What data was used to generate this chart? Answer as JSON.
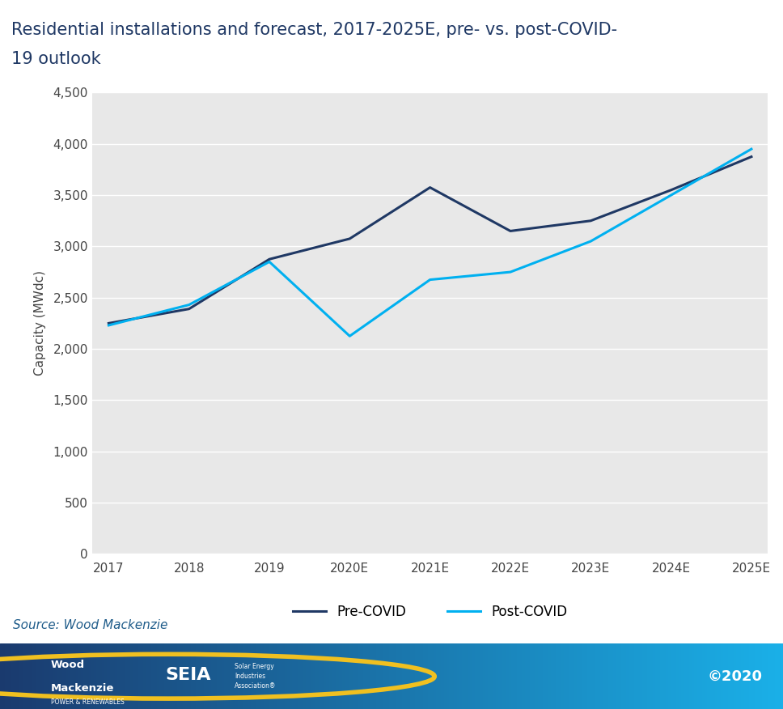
{
  "title_line1": "Residential installations and forecast, 2017-2025E, pre- vs. post-COVID-",
  "title_line2": "19 outlook",
  "ylabel": "Capacity (MWdc)",
  "source_text": "Source: Wood Mackenzie",
  "copyright_text": "©2020",
  "x_labels": [
    "2017",
    "2018",
    "2019",
    "2020E",
    "2021E",
    "2022E",
    "2023E",
    "2024E",
    "2025E"
  ],
  "pre_covid": [
    2250,
    2390,
    2875,
    3075,
    3575,
    3150,
    3250,
    3550,
    3875
  ],
  "post_covid": [
    2230,
    2430,
    2850,
    2125,
    2675,
    2750,
    3050,
    3500,
    3950
  ],
  "pre_color": "#1f3864",
  "post_color": "#00b0f0",
  "ylim": [
    0,
    4500
  ],
  "yticks": [
    0,
    500,
    1000,
    1500,
    2000,
    2500,
    3000,
    3500,
    4000,
    4500
  ],
  "plot_bg": "#e8e8e8",
  "title_color": "#1f3864",
  "source_color": "#1f5c8a",
  "title_fontsize": 15,
  "axis_fontsize": 11,
  "tick_fontsize": 11,
  "legend_fontsize": 12,
  "source_fontsize": 11,
  "line_width": 2.2,
  "footer_left_color": "#1a3a6e",
  "footer_right_color": "#1ab0e8"
}
